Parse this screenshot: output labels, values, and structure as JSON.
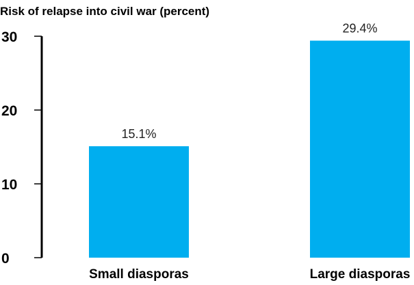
{
  "chart_data": {
    "type": "bar",
    "title": "Risk of relapse into civil war (percent)",
    "xlabel": "",
    "ylabel": "",
    "categories": [
      "Small diasporas",
      "Large diasporas"
    ],
    "values": [
      15.1,
      29.4
    ],
    "data_labels": [
      "15.1%",
      "29.4%"
    ],
    "ylim": [
      0,
      30
    ],
    "yticks": [
      0,
      10,
      20,
      30
    ],
    "ytick_labels": [
      "0",
      "10",
      "20",
      "30"
    ],
    "grid": false,
    "legend": "none",
    "colors": {
      "bar": "#00aeef",
      "axis": "#000000",
      "text": "#000000"
    }
  }
}
